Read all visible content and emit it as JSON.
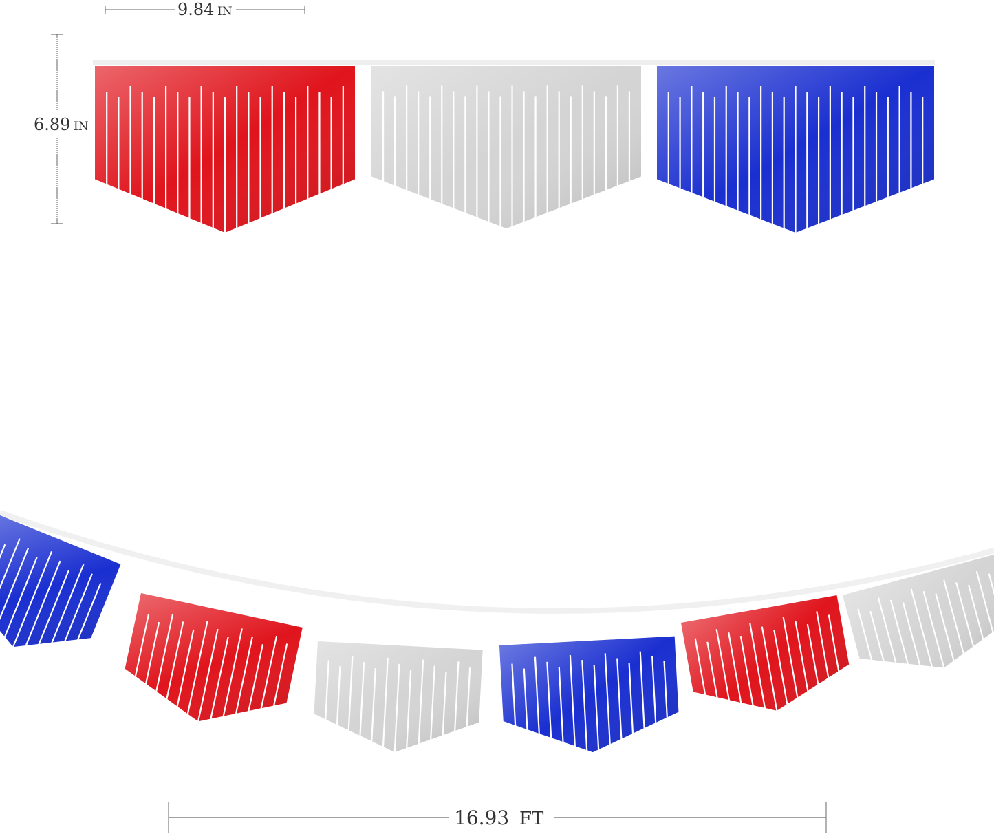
{
  "dimensions": {
    "width": {
      "value": "9.84",
      "unit": "IN"
    },
    "height": {
      "value": "6.89",
      "unit": "IN"
    },
    "length": {
      "value": "16.93",
      "unit": "FT"
    }
  },
  "colors": {
    "red": "#e0141c",
    "silver": "#d4d4d4",
    "blue": "#1a2fd0",
    "string": "#eeeeee",
    "dimension_line": "#555555"
  },
  "top_row": [
    "red",
    "silver",
    "blue"
  ],
  "bottom_row": [
    "blue",
    "red",
    "silver",
    "blue",
    "red",
    "silver"
  ]
}
